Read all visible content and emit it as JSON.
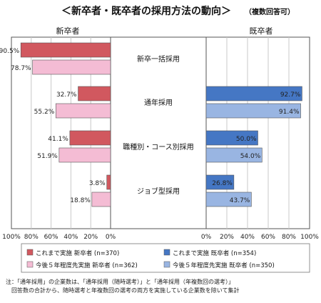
{
  "chart_data": {
    "type": "bar",
    "title": "＜新卒者・既卒者の採用方法の動向＞",
    "subtitle": "（複数回答可）",
    "panel_labels": {
      "left": "新卒者",
      "right": "既卒者"
    },
    "categories": [
      "新卒一括採用",
      "通年採用",
      "職種別・コース別採用",
      "ジョブ型採用"
    ],
    "left_axis_ticks": [
      "100%",
      "80%",
      "60%",
      "40%",
      "20%",
      "0%"
    ],
    "right_axis_ticks": [
      "0%",
      "20%",
      "40%",
      "60%",
      "80%",
      "100%"
    ],
    "xlim": [
      0,
      100
    ],
    "left_series": [
      {
        "name": "これまで実施 新卒者",
        "n": "(n=370)",
        "color": "#d1585f",
        "values": [
          90.5,
          32.7,
          41.1,
          3.8
        ],
        "labels": [
          "90.5%",
          "32.7%",
          "41.1%",
          "3.8%"
        ]
      },
      {
        "name": "今後５年程度先実施 新卒者",
        "n": "(n=362)",
        "color": "#f4bcd4",
        "values": [
          78.7,
          55.2,
          51.9,
          18.8
        ],
        "labels": [
          "78.7%",
          "55.2%",
          "51.9%",
          "18.8%"
        ]
      }
    ],
    "right_series": [
      {
        "name": "これまで実施 既卒者",
        "n": "(n=354)",
        "color": "#4577c4",
        "values": [
          null,
          92.7,
          50.0,
          26.8
        ],
        "labels": [
          "",
          "92.7%",
          "50.0%",
          "26.8%"
        ]
      },
      {
        "name": "今後５年程度先実施 既卒者",
        "n": "(n=350)",
        "color": "#99b5e2",
        "values": [
          null,
          91.4,
          54.0,
          43.7
        ],
        "labels": [
          "",
          "91.4%",
          "54.0%",
          "43.7%"
        ]
      }
    ],
    "note": "注：「通年採用」の企業数は、「通年採用（随時選考）」と「通年採用（年複数回の選考）」の回答数の合計から、随時選考と年複数回の選考の両方を実施している企業数を除いて集計"
  }
}
